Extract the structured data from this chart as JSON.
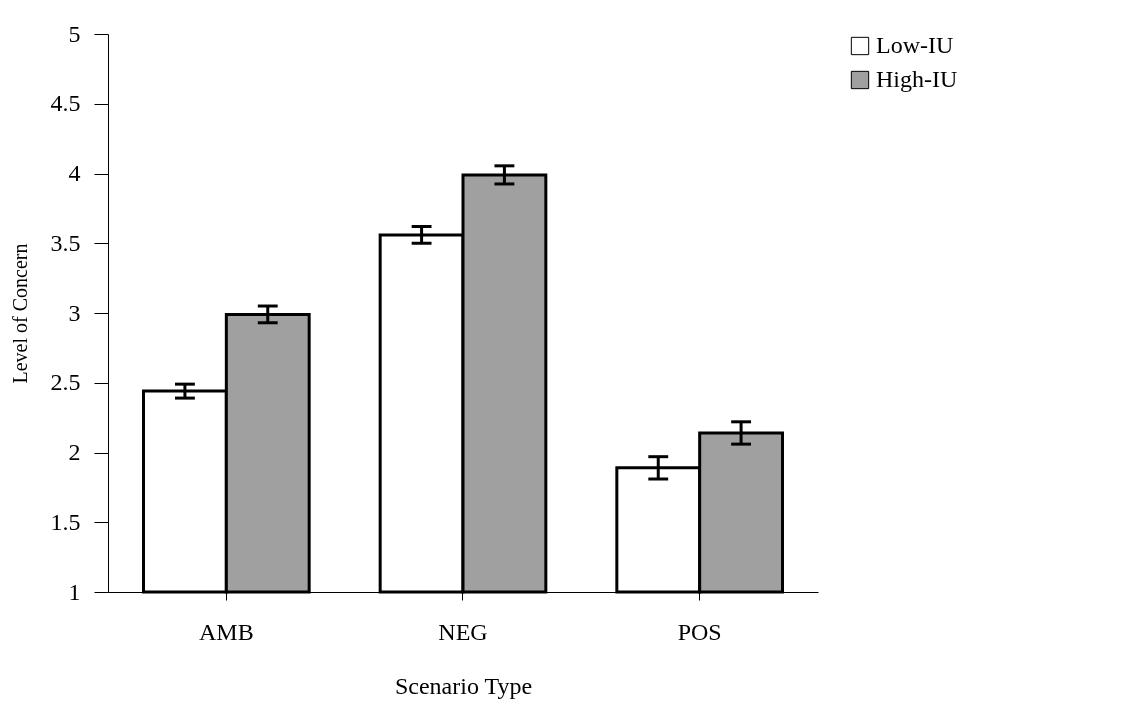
{
  "chart_data": {
    "type": "bar",
    "xlabel": "Scenario Type",
    "ylabel": "Level of Concern",
    "categories": [
      "AMB",
      "NEG",
      "POS"
    ],
    "series": [
      {
        "name": "Low-IU",
        "color": "#ffffff",
        "values": [
          2.44,
          3.56,
          1.89
        ],
        "errors": [
          0.05,
          0.06,
          0.08
        ]
      },
      {
        "name": "High-IU",
        "color": "#a0a0a0",
        "values": [
          2.99,
          3.99,
          2.14
        ],
        "errors": [
          0.06,
          0.065,
          0.08
        ]
      }
    ],
    "ylim": [
      1,
      5
    ],
    "yticks": [
      1,
      1.5,
      2,
      2.5,
      3,
      3.5,
      4,
      4.5,
      5
    ],
    "grid": false,
    "legend": "right"
  }
}
